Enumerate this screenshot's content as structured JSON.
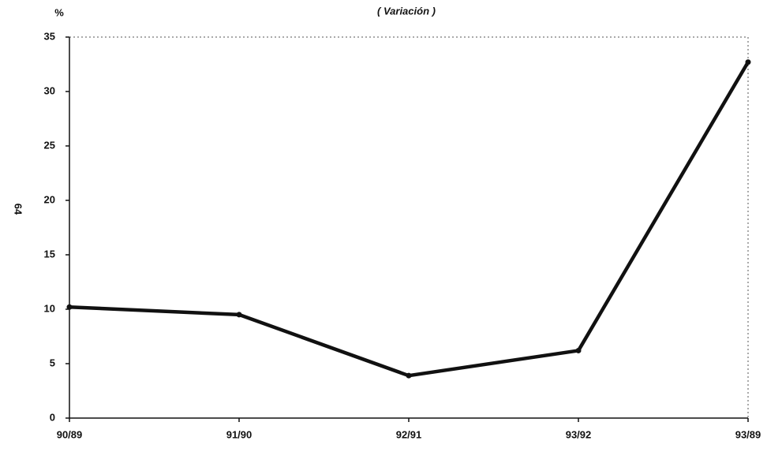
{
  "chart_data": {
    "type": "line",
    "title": "( Variación )",
    "y_label": "%",
    "annotation": "64",
    "categories": [
      "90/89",
      "91/90",
      "92/91",
      "93/92",
      "93/89"
    ],
    "series": [
      {
        "name": "Variación",
        "color": "#111111",
        "values": [
          10.2,
          9.5,
          3.9,
          6.2,
          32.7
        ]
      }
    ],
    "ylim": [
      0,
      35
    ],
    "yticks": [
      0,
      5,
      10,
      15,
      20,
      25,
      30,
      35
    ],
    "grid": false
  }
}
